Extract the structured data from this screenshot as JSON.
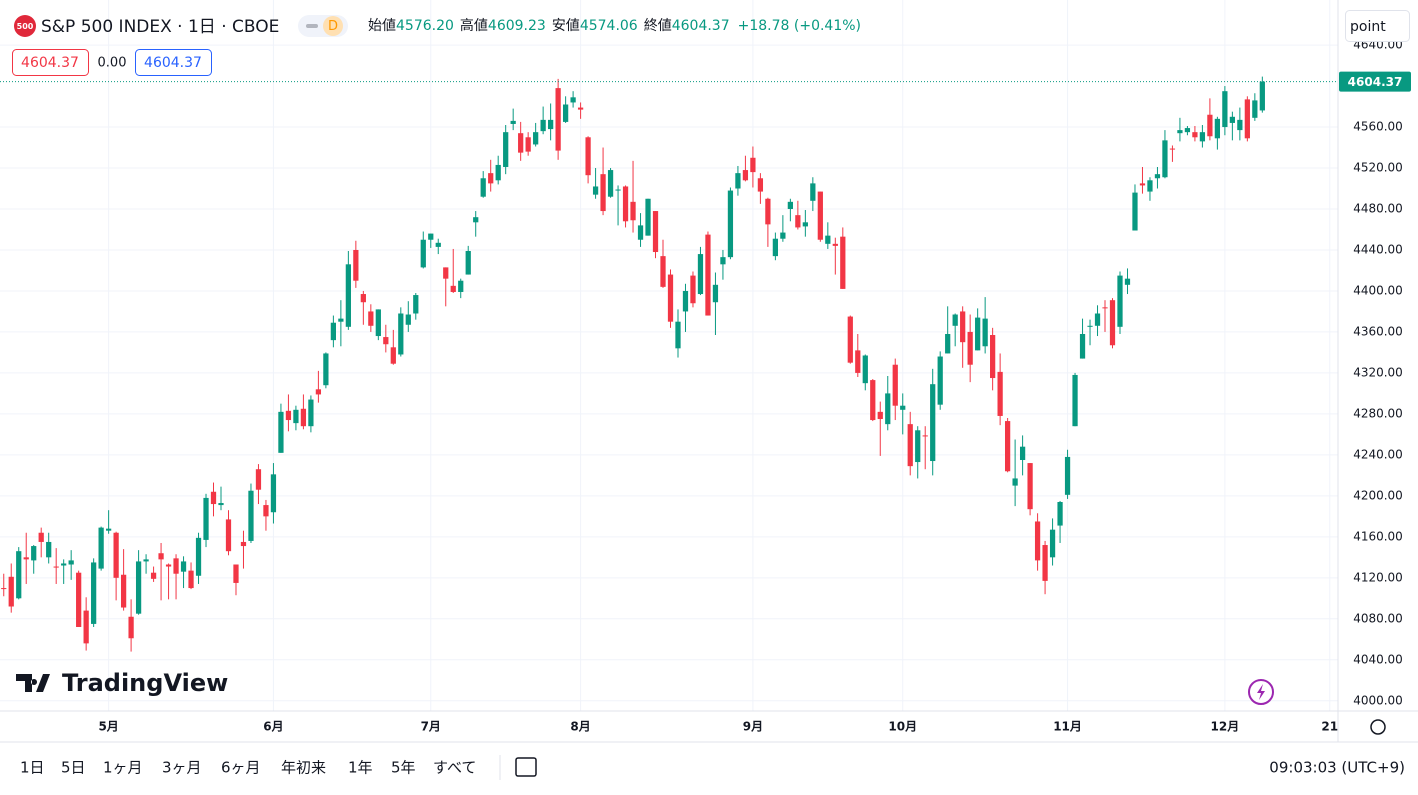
{
  "header": {
    "logo": "500",
    "title": "S&P 500 INDEX · 1日 · CBOE",
    "badge": "D",
    "open_label": "始値",
    "open": "4576.20",
    "high_label": "高値",
    "high": "4609.23",
    "low_label": "安値",
    "low": "4574.06",
    "close_label": "終値",
    "close": "4604.37",
    "change": "+18.78 (+0.41%)",
    "bid": "4604.37",
    "spread": "0.00",
    "ask": "4604.37",
    "unit_button": "point"
  },
  "chart_data": {
    "type": "candlestick",
    "up_color": "#089981",
    "down_color": "#f23645",
    "grid": true,
    "price_label": "4604.37",
    "xlim": [
      -0.5,
      178.1
    ],
    "xticks": [
      {
        "value": 14,
        "label": "5月"
      },
      {
        "value": 36,
        "label": "6月"
      },
      {
        "value": 57,
        "label": "7月"
      },
      {
        "value": 77,
        "label": "8月"
      },
      {
        "value": 100,
        "label": "9月"
      },
      {
        "value": 120,
        "label": "10月"
      },
      {
        "value": 142,
        "label": "11月"
      },
      {
        "value": 163,
        "label": "12月"
      },
      {
        "value": 177,
        "label": "21"
      }
    ],
    "ylim": [
      3990,
      4684
    ],
    "yticks": [
      {
        "value": 4000,
        "label": "4000.00"
      },
      {
        "value": 4040,
        "label": "4040.00"
      },
      {
        "value": 4080,
        "label": "4080.00"
      },
      {
        "value": 4120,
        "label": "4120.00"
      },
      {
        "value": 4160,
        "label": "4160.00"
      },
      {
        "value": 4200,
        "label": "4200.00"
      },
      {
        "value": 4240,
        "label": "4240.00"
      },
      {
        "value": 4280,
        "label": "4280.00"
      },
      {
        "value": 4320,
        "label": "4320.00"
      },
      {
        "value": 4360,
        "label": "4360.00"
      },
      {
        "value": 4400,
        "label": "4400.00"
      },
      {
        "value": 4440,
        "label": "4440.00"
      },
      {
        "value": 4480,
        "label": "4480.00"
      },
      {
        "value": 4520,
        "label": "4520.00"
      },
      {
        "value": 4560,
        "label": "4560.00"
      },
      {
        "value": 4640,
        "label": "4640.00"
      }
    ],
    "candles": [
      [
        4110,
        4124,
        4102,
        4109
      ],
      [
        4121,
        4134,
        4086,
        4092
      ],
      [
        4100,
        4150,
        4099,
        4146
      ],
      [
        4140,
        4164,
        4114,
        4138
      ],
      [
        4137,
        4152,
        4124,
        4151
      ],
      [
        4164,
        4169,
        4140,
        4155
      ],
      [
        4140,
        4164,
        4134,
        4155
      ],
      [
        4131,
        4149,
        4114,
        4130
      ],
      [
        4132,
        4138,
        4114,
        4134
      ],
      [
        4133,
        4147,
        4118,
        4137
      ],
      [
        4125,
        4127,
        4072,
        4072
      ],
      [
        4088,
        4101,
        4049,
        4056
      ],
      [
        4075,
        4139,
        4072,
        4135
      ],
      [
        4129,
        4170,
        4127,
        4169
      ],
      [
        4166,
        4186,
        4163,
        4168
      ],
      [
        4164,
        4165,
        4098,
        4120
      ],
      [
        4123,
        4148,
        4088,
        4091
      ],
      [
        4082,
        4099,
        4048,
        4061
      ],
      [
        4085,
        4147,
        4084,
        4136
      ],
      [
        4136,
        4143,
        4124,
        4138
      ],
      [
        4125,
        4131,
        4116,
        4119
      ],
      [
        4144,
        4154,
        4098,
        4138
      ],
      [
        4133,
        4134,
        4099,
        4131
      ],
      [
        4139,
        4143,
        4099,
        4124
      ],
      [
        4126,
        4141,
        4110,
        4136
      ],
      [
        4127,
        4135,
        4109,
        4110
      ],
      [
        4122,
        4164,
        4114,
        4159
      ],
      [
        4157,
        4202,
        4150,
        4198
      ],
      [
        4204,
        4213,
        4180,
        4192
      ],
      [
        4191,
        4209,
        4186,
        4193
      ],
      [
        4177,
        4186,
        4142,
        4146
      ],
      [
        4133,
        4133,
        4103,
        4115
      ],
      [
        4155,
        4166,
        4129,
        4151
      ],
      [
        4156,
        4212,
        4154,
        4205
      ],
      [
        4226,
        4231,
        4192,
        4206
      ],
      [
        4191,
        4196,
        4166,
        4180
      ],
      [
        4184,
        4232,
        4173,
        4221
      ],
      [
        4242,
        4290,
        4242,
        4282
      ],
      [
        4283,
        4299,
        4263,
        4274
      ],
      [
        4271,
        4288,
        4264,
        4284
      ],
      [
        4285,
        4299,
        4265,
        4268
      ],
      [
        4268,
        4298,
        4262,
        4294
      ],
      [
        4304,
        4322,
        4291,
        4299
      ],
      [
        4308,
        4340,
        4305,
        4339
      ],
      [
        4352,
        4376,
        4345,
        4369
      ],
      [
        4370,
        4391,
        4346,
        4373
      ],
      [
        4365,
        4439,
        4362,
        4426
      ],
      [
        4440,
        4449,
        4403,
        4410
      ],
      [
        4397,
        4400,
        4367,
        4389
      ],
      [
        4380,
        4387,
        4360,
        4366
      ],
      [
        4356,
        4382,
        4352,
        4382
      ],
      [
        4355,
        4367,
        4340,
        4348
      ],
      [
        4345,
        4362,
        4328,
        4329
      ],
      [
        4338,
        4384,
        4336,
        4378
      ],
      [
        4367,
        4390,
        4360,
        4377
      ],
      [
        4378,
        4398,
        4372,
        4396
      ],
      [
        4423,
        4458,
        4422,
        4450
      ],
      [
        4450,
        4456,
        4442,
        4456
      ],
      [
        4443,
        4451,
        4436,
        4447
      ],
      [
        4423,
        4423,
        4385,
        4412
      ],
      [
        4405,
        4441,
        4398,
        4399
      ],
      [
        4399,
        4412,
        4393,
        4410
      ],
      [
        4416,
        4444,
        4416,
        4439
      ],
      [
        4467,
        4478,
        4453,
        4472
      ],
      [
        4492,
        4517,
        4491,
        4510
      ],
      [
        4515,
        4528,
        4497,
        4505
      ],
      [
        4508,
        4532,
        4504,
        4523
      ],
      [
        4521,
        4562,
        4514,
        4555
      ],
      [
        4563,
        4578,
        4557,
        4566
      ],
      [
        4554,
        4565,
        4527,
        4535
      ],
      [
        4550,
        4555,
        4532,
        4536
      ],
      [
        4543,
        4564,
        4541,
        4555
      ],
      [
        4556,
        4580,
        4553,
        4567
      ],
      [
        4558,
        4583,
        4547,
        4567
      ],
      [
        4598,
        4607,
        4528,
        4537
      ],
      [
        4565,
        4590,
        4564,
        4582
      ],
      [
        4584,
        4595,
        4579,
        4589
      ],
      [
        4579,
        4584,
        4568,
        4577
      ],
      [
        4550,
        4551,
        4505,
        4513
      ],
      [
        4494,
        4520,
        4490,
        4502
      ],
      [
        4514,
        4540,
        4474,
        4478
      ],
      [
        4492,
        4520,
        4491,
        4518
      ],
      [
        4498,
        4503,
        4464,
        4499
      ],
      [
        4502,
        4503,
        4462,
        4468
      ],
      [
        4487,
        4527,
        4457,
        4469
      ],
      [
        4450,
        4476,
        4443,
        4464
      ],
      [
        4454,
        4490,
        4454,
        4490
      ],
      [
        4478,
        4478,
        4432,
        4438
      ],
      [
        4434,
        4450,
        4403,
        4404
      ],
      [
        4416,
        4421,
        4364,
        4370
      ],
      [
        4344,
        4382,
        4335,
        4370
      ],
      [
        4380,
        4407,
        4360,
        4400
      ],
      [
        4415,
        4419,
        4384,
        4388
      ],
      [
        4397,
        4443,
        4396,
        4436
      ],
      [
        4455,
        4458,
        4376,
        4376
      ],
      [
        4389,
        4418,
        4357,
        4406
      ],
      [
        4426,
        4440,
        4411,
        4433
      ],
      [
        4433,
        4501,
        4431,
        4498
      ],
      [
        4500,
        4522,
        4493,
        4515
      ],
      [
        4518,
        4532,
        4507,
        4508
      ],
      [
        4530,
        4541,
        4501,
        4516
      ],
      [
        4510,
        4515,
        4485,
        4497
      ],
      [
        4490,
        4491,
        4443,
        4465
      ],
      [
        4434,
        4457,
        4430,
        4451
      ],
      [
        4451,
        4474,
        4448,
        4457
      ],
      [
        4480,
        4490,
        4468,
        4487
      ],
      [
        4474,
        4488,
        4460,
        4462
      ],
      [
        4463,
        4479,
        4453,
        4467
      ],
      [
        4488,
        4511,
        4478,
        4505
      ],
      [
        4497,
        4497,
        4448,
        4450
      ],
      [
        4446,
        4467,
        4441,
        4454
      ],
      [
        4446,
        4452,
        4416,
        4444
      ],
      [
        4453,
        4462,
        4402,
        4402
      ],
      [
        4375,
        4376,
        4329,
        4330
      ],
      [
        4342,
        4358,
        4316,
        4320
      ],
      [
        4310,
        4338,
        4303,
        4337
      ],
      [
        4313,
        4314,
        4273,
        4274
      ],
      [
        4282,
        4292,
        4239,
        4275
      ],
      [
        4270,
        4317,
        4264,
        4300
      ],
      [
        4328,
        4334,
        4274,
        4288
      ],
      [
        4284,
        4300,
        4260,
        4288
      ],
      [
        4270,
        4282,
        4220,
        4229
      ],
      [
        4233,
        4268,
        4217,
        4264
      ],
      [
        4259,
        4268,
        4226,
        4258
      ],
      [
        4234,
        4324,
        4220,
        4309
      ],
      [
        4289,
        4341,
        4284,
        4336
      ],
      [
        4339,
        4385,
        4339,
        4358
      ],
      [
        4366,
        4378,
        4346,
        4377
      ],
      [
        4380,
        4385,
        4325,
        4350
      ],
      [
        4360,
        4377,
        4311,
        4328
      ],
      [
        4342,
        4383,
        4342,
        4374
      ],
      [
        4346,
        4394,
        4339,
        4373
      ],
      [
        4357,
        4364,
        4303,
        4315
      ],
      [
        4321,
        4339,
        4269,
        4278
      ],
      [
        4273,
        4276,
        4223,
        4224
      ],
      [
        4210,
        4255,
        4190,
        4217
      ],
      [
        4235,
        4259,
        4220,
        4248
      ],
      [
        4232,
        4232,
        4181,
        4187
      ],
      [
        4175,
        4183,
        4127,
        4137
      ],
      [
        4152,
        4156,
        4104,
        4117
      ],
      [
        4140,
        4178,
        4132,
        4167
      ],
      [
        4171,
        4195,
        4154,
        4194
      ],
      [
        4201,
        4245,
        4197,
        4238
      ],
      [
        4268,
        4320,
        4268,
        4318
      ],
      [
        4334,
        4373,
        4334,
        4358
      ],
      [
        4365,
        4372,
        4347,
        4366
      ],
      [
        4366,
        4386,
        4356,
        4378
      ],
      [
        4384,
        4391,
        4360,
        4383
      ],
      [
        4391,
        4393,
        4344,
        4347
      ],
      [
        4365,
        4419,
        4358,
        4415
      ],
      [
        4406,
        4422,
        4397,
        4412
      ],
      [
        4459,
        4504,
        4459,
        4496
      ],
      [
        4505,
        4521,
        4495,
        4503
      ],
      [
        4497,
        4511,
        4488,
        4508
      ],
      [
        4510,
        4521,
        4500,
        4514
      ],
      [
        4511,
        4557,
        4510,
        4547
      ],
      [
        4539,
        4542,
        4526,
        4538
      ],
      [
        4554,
        4569,
        4546,
        4557
      ],
      [
        4555,
        4561,
        4552,
        4559
      ],
      [
        4555,
        4561,
        4546,
        4550
      ],
      [
        4546,
        4562,
        4540,
        4555
      ],
      [
        4572,
        4588,
        4547,
        4551
      ],
      [
        4549,
        4570,
        4538,
        4568
      ],
      [
        4560,
        4600,
        4552,
        4595
      ],
      [
        4564,
        4575,
        4547,
        4570
      ],
      [
        4557,
        4579,
        4547,
        4567
      ],
      [
        4587,
        4590,
        4546,
        4549
      ],
      [
        4569,
        4593,
        4566,
        4586
      ],
      [
        4576.2,
        4609.23,
        4574.06,
        4604.37
      ]
    ]
  },
  "footer": {
    "logo_text": "TradingView",
    "ranges": [
      "1日",
      "5日",
      "1ヶ月",
      "3ヶ月",
      "6ヶ月",
      "年初来",
      "1年",
      "5年",
      "すべて"
    ],
    "clock": "09:03:03 (UTC+9)"
  }
}
